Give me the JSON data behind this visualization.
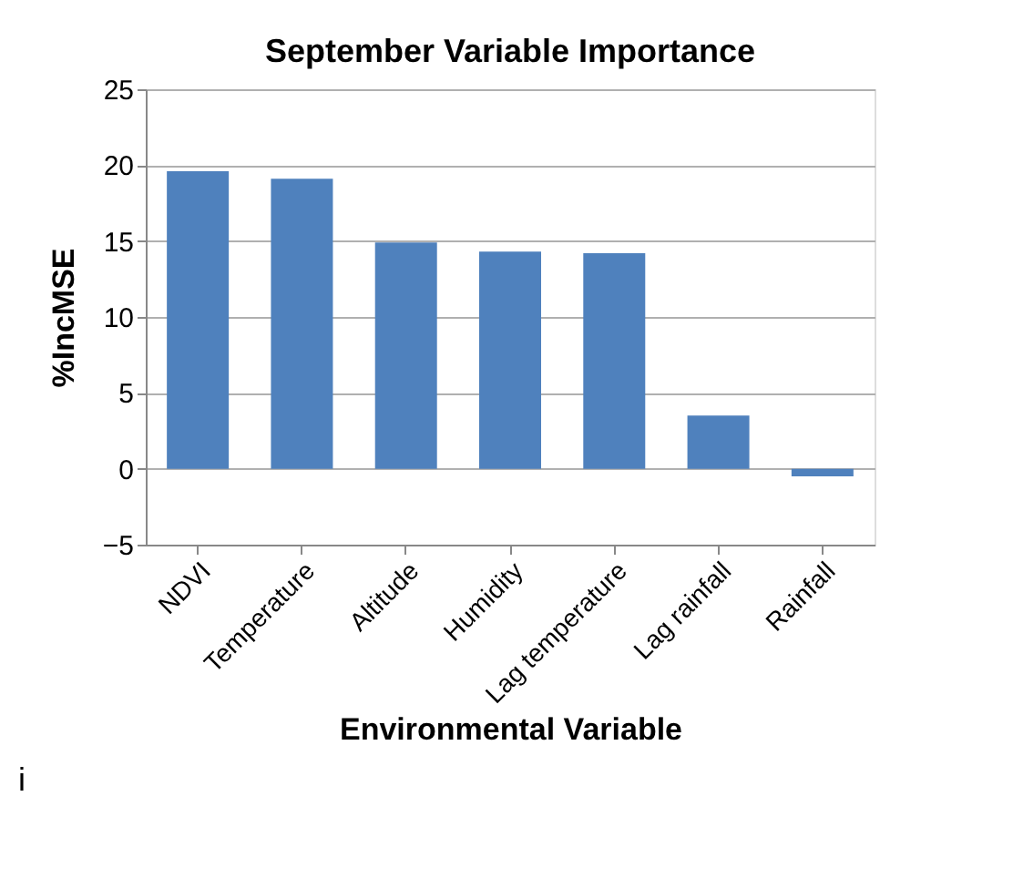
{
  "chart_data": {
    "type": "bar",
    "title": "September Variable Importance",
    "xlabel": "Environmental Variable",
    "ylabel": "%IncMSE",
    "categories": [
      "NDVI",
      "Temperature",
      "Altitude",
      "Humidity",
      "Lag temperature",
      "Lag rainfall",
      "Rainfall"
    ],
    "values": [
      19.6,
      19.1,
      14.9,
      14.3,
      14.2,
      3.5,
      -0.5
    ],
    "color": "#4f81bd",
    "ylim": [
      -5,
      25
    ],
    "yticks": [
      -5,
      0,
      5,
      10,
      15,
      20,
      25
    ],
    "grid": "y",
    "annotations": [
      "i"
    ]
  }
}
